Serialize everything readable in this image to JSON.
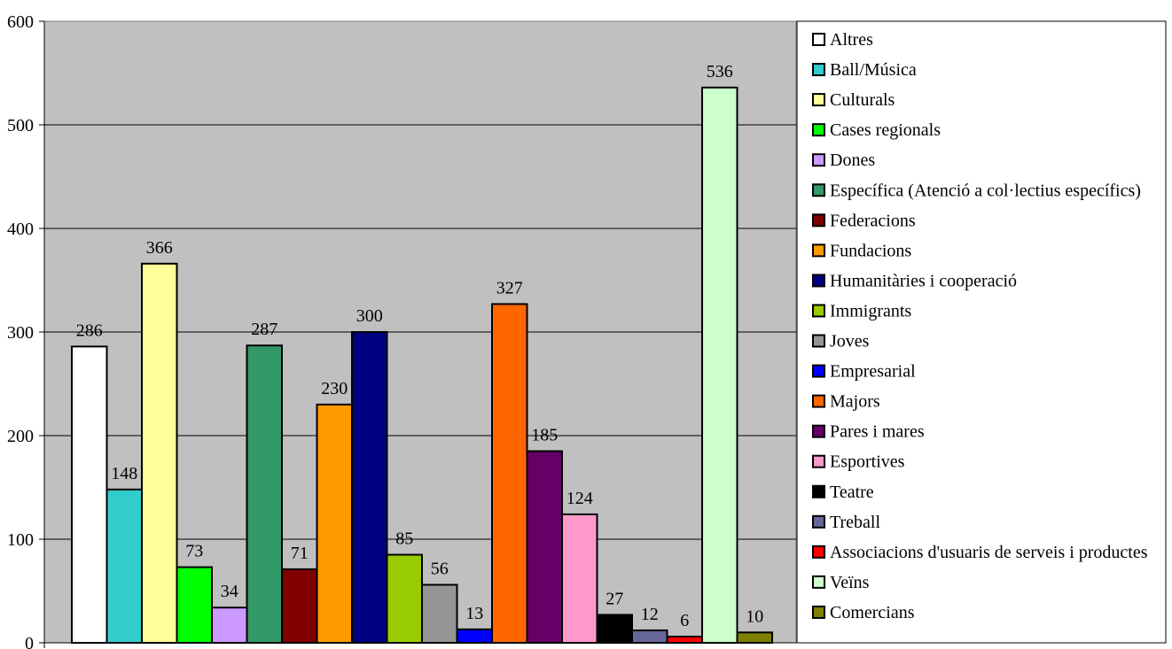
{
  "chart_data": {
    "type": "bar",
    "title": "",
    "xlabel": "",
    "ylabel": "",
    "ylim": [
      0,
      600
    ],
    "yticks": [
      "0",
      "100",
      "200",
      "300",
      "400",
      "500",
      "600"
    ],
    "grid": true,
    "legend_position": "right",
    "plot_background": "#c0c0c0",
    "series": [
      {
        "name": "Altres",
        "value": 286,
        "color": "#ffffff"
      },
      {
        "name": "Ball/Música",
        "value": 148,
        "color": "#33cccc"
      },
      {
        "name": "Culturals",
        "value": 366,
        "color": "#ffff99"
      },
      {
        "name": "Cases regionals",
        "value": 73,
        "color": "#00ff00"
      },
      {
        "name": "Dones",
        "value": 34,
        "color": "#cc99ff"
      },
      {
        "name": "Específica (Atenció a col·lectius específics)",
        "value": 287,
        "color": "#339966"
      },
      {
        "name": "Federacions",
        "value": 71,
        "color": "#800000"
      },
      {
        "name": "Fundacions",
        "value": 230,
        "color": "#ff9900"
      },
      {
        "name": "Humanitàries i cooperació",
        "value": 300,
        "color": "#000080"
      },
      {
        "name": "Immigrants",
        "value": 85,
        "color": "#99cc00"
      },
      {
        "name": "Joves",
        "value": 56,
        "color": "#969696"
      },
      {
        "name": "Empresarial",
        "value": 13,
        "color": "#0000ff"
      },
      {
        "name": "Majors",
        "value": 327,
        "color": "#ff6600"
      },
      {
        "name": "Pares i mares",
        "value": 185,
        "color": "#660066"
      },
      {
        "name": "Esportives",
        "value": 124,
        "color": "#ff99cc"
      },
      {
        "name": "Teatre",
        "value": 27,
        "color": "#000000"
      },
      {
        "name": "Treball",
        "value": 12,
        "color": "#666699"
      },
      {
        "name": "Associacions d'usuaris de serveis i productes",
        "value": 6,
        "color": "#ff0000"
      },
      {
        "name": "Veïns",
        "value": 536,
        "color": "#ccffcc"
      },
      {
        "name": "Comercians",
        "value": 10,
        "color": "#808000"
      }
    ]
  }
}
